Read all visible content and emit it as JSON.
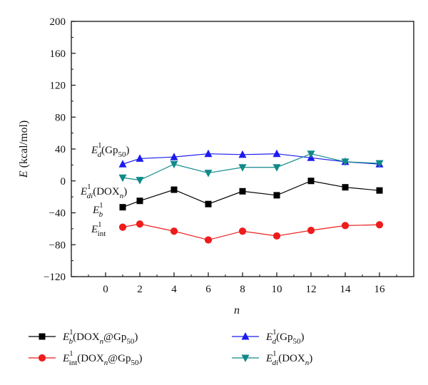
{
  "chart_data": {
    "type": "line",
    "xlabel_parts": [
      "n",
      ""
    ],
    "ylabel_parts": [
      "E",
      " (kcal/mol)"
    ],
    "xlim": [
      -2,
      18
    ],
    "ylim": [
      -120,
      200
    ],
    "x_ticks": [
      0,
      2,
      4,
      6,
      8,
      10,
      12,
      14,
      16
    ],
    "y_ticks": [
      -120,
      -80,
      -40,
      0,
      40,
      80,
      120,
      160,
      200
    ],
    "x_ticks_text": [
      "0",
      "2",
      "4",
      "6",
      "8",
      "10",
      "12",
      "14",
      "16"
    ],
    "y_ticks_text": [
      "−120",
      "−80",
      "−40",
      "0",
      "40",
      "80",
      "120",
      "160",
      "200"
    ],
    "x": [
      1,
      2,
      4,
      6,
      8,
      10,
      12,
      14,
      16
    ],
    "grid": false,
    "legend_position": "bottom",
    "series": [
      {
        "name": "E_b^1(DOX_n@Gp_50)",
        "label": {
          "base": "E",
          "sub": "b",
          "sup": "1",
          "rest": [
            [
              "(DOX",
              ""
            ],
            [
              "n",
              "sub-it"
            ],
            [
              "@Gp",
              ""
            ],
            [
              "50",
              "sub"
            ],
            [
              ")",
              ""
            ]
          ]
        },
        "marker": "square",
        "color": "#000000",
        "values": [
          -33,
          -25,
          -11,
          -29,
          -13,
          -18,
          0,
          -8,
          -12
        ]
      },
      {
        "name": "E_int^1(DOX_n@Gp_50)",
        "label": {
          "base": "E",
          "sub": "int",
          "sup": "1",
          "rest": [
            [
              "(DOX",
              ""
            ],
            [
              "n",
              "sub-it"
            ],
            [
              "@Gp",
              ""
            ],
            [
              "50",
              "sub"
            ],
            [
              ")",
              ""
            ]
          ]
        },
        "marker": "circle",
        "color": "#ee1c1c",
        "values": [
          -58,
          -54,
          -63,
          -74,
          -63,
          -69,
          -62,
          -56,
          -55
        ]
      },
      {
        "name": "E_d^1(Gp_50)",
        "label": {
          "base": "E",
          "sub": "d",
          "sup": "1",
          "rest": [
            [
              "(Gp",
              ""
            ],
            [
              "50",
              "sub"
            ],
            [
              ")",
              ""
            ]
          ]
        },
        "marker": "triangle-up",
        "color": "#1c1cee",
        "values": [
          21,
          28,
          30,
          34,
          33,
          34,
          29,
          24,
          21
        ]
      },
      {
        "name": "E_di^1(DOX_n)",
        "label": {
          "base": "E",
          "sub": "di",
          "sup": "1",
          "rest": [
            [
              "(DOX",
              ""
            ],
            [
              "n",
              "sub-it"
            ],
            [
              ")",
              ""
            ]
          ]
        },
        "marker": "triangle-down",
        "color": "#108a8a",
        "values": [
          4,
          1,
          21,
          10,
          17,
          17,
          34,
          24,
          22
        ]
      }
    ],
    "annotations": [
      {
        "id": "ann-ed",
        "base": "E",
        "sub": "d",
        "sup": "1",
        "rest": [
          [
            "(Gp",
            ""
          ],
          [
            "50",
            "sub"
          ],
          [
            ")",
            ""
          ]
        ]
      },
      {
        "id": "ann-edi",
        "base": "E",
        "sub": "di",
        "sup": "1",
        "rest": [
          [
            "(DOX",
            ""
          ],
          [
            "n",
            "sub-it"
          ],
          [
            ")",
            ""
          ]
        ]
      },
      {
        "id": "ann-eb",
        "base": "E",
        "sub": "b",
        "sup": "1",
        "rest": []
      },
      {
        "id": "ann-eint",
        "base": "E",
        "sub": "int",
        "sup": "1",
        "rest": []
      }
    ]
  }
}
